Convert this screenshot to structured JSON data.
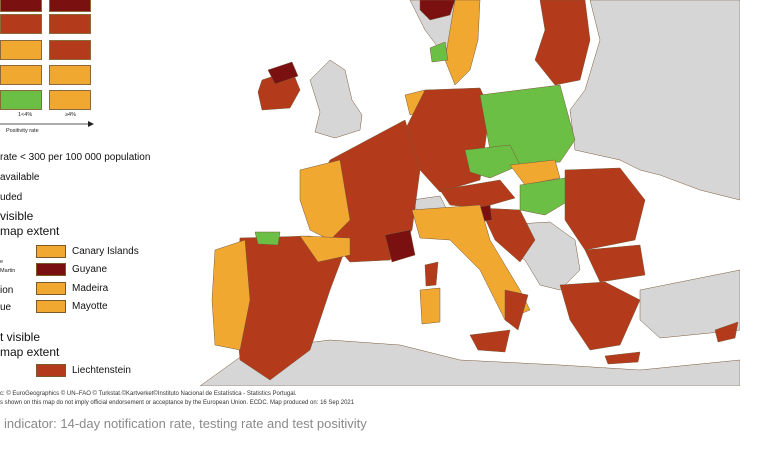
{
  "colors": {
    "sea": "#ffffff",
    "non_eu": "#d6d6d6",
    "green": "#6cbf45",
    "orange": "#f0a830",
    "red": "#b33a1a",
    "dark_red": "#7a1010",
    "border": "#7a5a3a"
  },
  "legend": {
    "cell_low_positivity": "1<4%",
    "cell_high_positivity": "≥4%",
    "axis_label": "Positivity rate",
    "notification_rate_text": "rate < 300 per 100 000 population",
    "not_available_text": "available",
    "excluded_text": "uded",
    "not_visible_header_1_line1": "visible",
    "not_visible_header_1_line2": "map extent",
    "not_visible_header_2_line1": "t visible",
    "not_visible_header_2_line2": "map extent",
    "left_cut_labels": [
      "e",
      "Martin",
      "ion",
      "ue"
    ],
    "outermost_regions": [
      {
        "name": "Canary Islands",
        "color": "orange"
      },
      {
        "name": "Guyane",
        "color": "dark_red"
      },
      {
        "name": "Madeira",
        "color": "orange"
      },
      {
        "name": "Mayotte",
        "color": "orange"
      }
    ],
    "extra_region": {
      "name": "Liechtenstein",
      "color": "red"
    }
  },
  "footer": {
    "line1": "c: © EuroGeographics © UN–FAO © Turkstat.©Kartverket©Instituto Nacional de Estatística - Statistics Portugal.",
    "line2": "s shown on this map do not imply official endorsement or acceptance by the European Union. ECDC. Map produced on: 16 Sep 2021"
  },
  "caption": "indicator: 14-day notification rate, testing rate and test positivity"
}
